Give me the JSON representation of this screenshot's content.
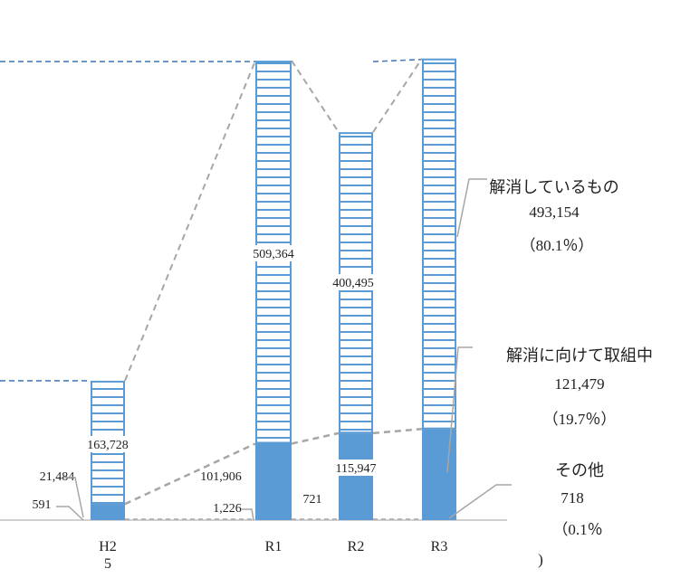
{
  "chart_data": {
    "type": "bar",
    "stacked": true,
    "categories": [
      "H2\n5",
      "R1",
      "R2",
      "R3"
    ],
    "series": [
      {
        "name": "解消に向けて取組中",
        "values": [
          21484,
          101906,
          115947,
          121479
        ],
        "labels": [
          "21,484",
          "101,906",
          "115,947",
          ""
        ]
      },
      {
        "name": "その他",
        "values": [
          591,
          1226,
          721,
          718
        ],
        "labels": [
          "591",
          "1,226",
          "721",
          ""
        ]
      },
      {
        "name": "解消しているもの",
        "values": [
          163728,
          509364,
          400495,
          493154
        ],
        "labels": [
          "163,728",
          "509,364",
          "400,495",
          ""
        ]
      }
    ],
    "annotations": [
      {
        "name": "解消しているもの",
        "value": "493,154",
        "percent": "（80.1％）"
      },
      {
        "name": "解消に向けて取組中",
        "value": "121,479",
        "percent": "（19.7％）"
      },
      {
        "name": "その他",
        "value": "718",
        "percent": "（0.1％",
        "close": ")"
      }
    ],
    "ylim": [
      0,
      615000
    ],
    "grid": false,
    "colors": {
      "solid": "#5b9bd5",
      "hatch": "#5b9bd5",
      "guide": "#a6a6a6",
      "dash": "#4a7ebb",
      "axis": "#d0d0d0"
    }
  }
}
